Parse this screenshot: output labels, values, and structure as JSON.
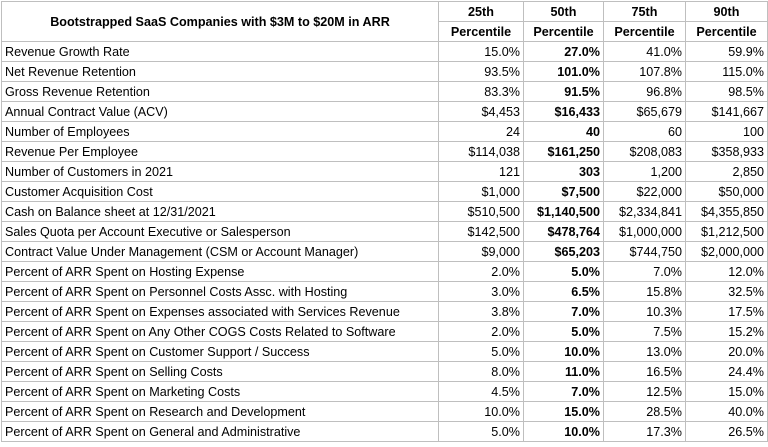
{
  "table": {
    "title": "Bootstrapped SaaS Companies with $3M to $20M in ARR",
    "columns": [
      {
        "top": "25th",
        "bottom": "Percentile"
      },
      {
        "top": "50th",
        "bottom": "Percentile"
      },
      {
        "top": "75th",
        "bottom": "Percentile"
      },
      {
        "top": "90th",
        "bottom": "Percentile"
      }
    ],
    "rows": [
      {
        "metric": "Revenue Growth Rate",
        "values": [
          "15.0%",
          "27.0%",
          "41.0%",
          "59.9%"
        ]
      },
      {
        "metric": "Net Revenue Retention",
        "values": [
          "93.5%",
          "101.0%",
          "107.8%",
          "115.0%"
        ]
      },
      {
        "metric": "Gross Revenue Retention",
        "values": [
          "83.3%",
          "91.5%",
          "96.8%",
          "98.5%"
        ]
      },
      {
        "metric": "Annual Contract Value (ACV)",
        "values": [
          "$4,453",
          "$16,433",
          "$65,679",
          "$141,667"
        ]
      },
      {
        "metric": "Number of Employees",
        "values": [
          "24",
          "40",
          "60",
          "100"
        ]
      },
      {
        "metric": "Revenue Per Employee",
        "values": [
          "$114,038",
          "$161,250",
          "$208,083",
          "$358,933"
        ]
      },
      {
        "metric": "Number of Customers in 2021",
        "values": [
          "121",
          "303",
          "1,200",
          "2,850"
        ]
      },
      {
        "metric": "Customer Acquisition Cost",
        "values": [
          "$1,000",
          "$7,500",
          "$22,000",
          "$50,000"
        ]
      },
      {
        "metric": "Cash on Balance sheet at 12/31/2021",
        "values": [
          "$510,500",
          "$1,140,500",
          "$2,334,841",
          "$4,355,850"
        ]
      },
      {
        "metric": "Sales Quota per Account Executive or Salesperson",
        "values": [
          "$142,500",
          "$478,764",
          "$1,000,000",
          "$1,212,500"
        ]
      },
      {
        "metric": "Contract Value Under Management (CSM or Account Manager)",
        "values": [
          "$9,000",
          "$65,203",
          "$744,750",
          "$2,000,000"
        ]
      },
      {
        "metric": "Percent of ARR Spent on Hosting Expense",
        "values": [
          "2.0%",
          "5.0%",
          "7.0%",
          "12.0%"
        ]
      },
      {
        "metric": "Percent of ARR Spent on Personnel Costs Assc. with Hosting",
        "values": [
          "3.0%",
          "6.5%",
          "15.8%",
          "32.5%"
        ]
      },
      {
        "metric": "Percent of ARR Spent on Expenses associated with Services Revenue",
        "values": [
          "3.8%",
          "7.0%",
          "10.3%",
          "17.5%"
        ]
      },
      {
        "metric": "Percent of ARR Spent on Any Other COGS Costs Related to Software",
        "values": [
          "2.0%",
          "5.0%",
          "7.5%",
          "15.2%"
        ]
      },
      {
        "metric": "Percent of ARR Spent on Customer Support / Success",
        "values": [
          "5.0%",
          "10.0%",
          "13.0%",
          "20.0%"
        ]
      },
      {
        "metric": "Percent of ARR Spent on Selling Costs",
        "values": [
          "8.0%",
          "11.0%",
          "16.5%",
          "24.4%"
        ]
      },
      {
        "metric": "Percent of ARR Spent on Marketing Costs",
        "values": [
          "4.5%",
          "7.0%",
          "12.5%",
          "15.0%"
        ]
      },
      {
        "metric": "Percent of ARR Spent on Research and Development",
        "values": [
          "10.0%",
          "15.0%",
          "28.5%",
          "40.0%"
        ]
      },
      {
        "metric": "Percent of ARR Spent on General and Administrative",
        "values": [
          "5.0%",
          "10.0%",
          "17.3%",
          "26.5%"
        ]
      }
    ]
  }
}
